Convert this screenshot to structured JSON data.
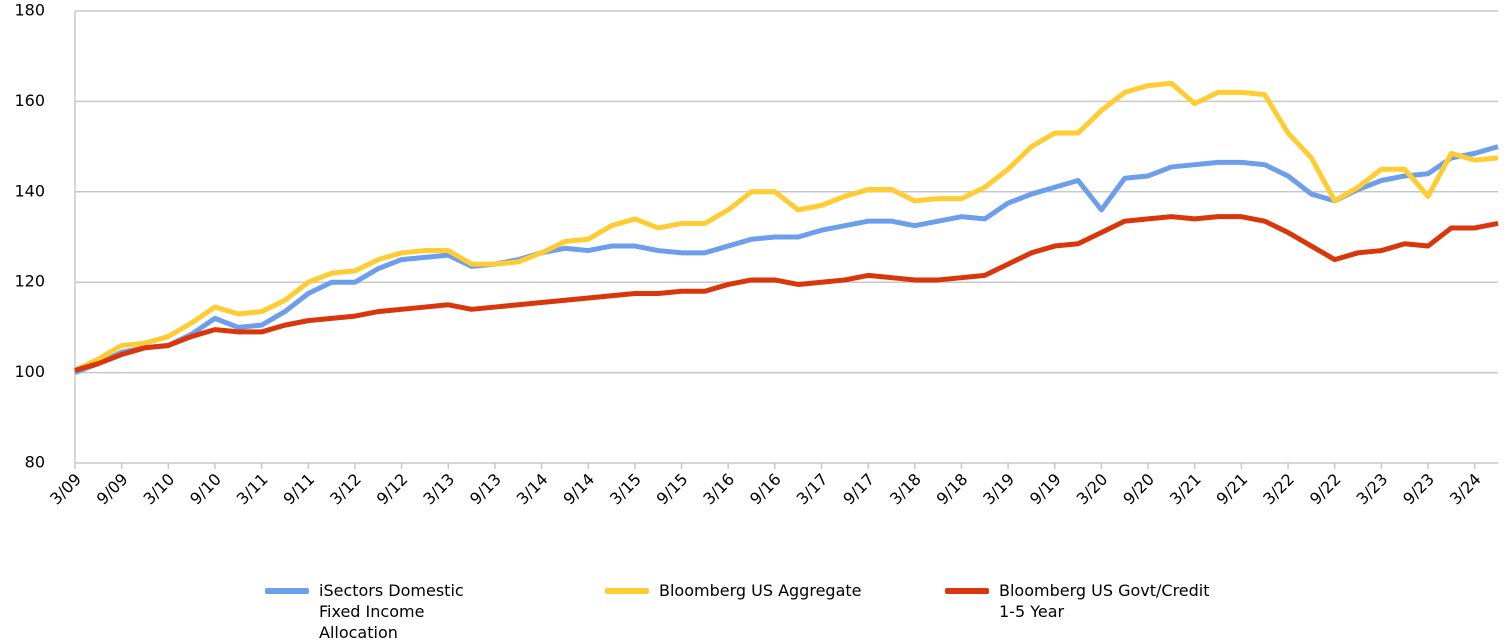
{
  "chart_data": {
    "type": "line",
    "categories": [
      "3/09",
      null,
      "9/09",
      null,
      "3/10",
      null,
      "9/10",
      null,
      "3/11",
      null,
      "9/11",
      null,
      "3/12",
      null,
      "9/12",
      null,
      "3/13",
      null,
      "9/13",
      null,
      "3/14",
      null,
      "9/14",
      null,
      "3/15",
      null,
      "9/15",
      null,
      "3/16",
      null,
      "9/16",
      null,
      "3/17",
      null,
      "9/17",
      null,
      "3/18",
      null,
      "9/18",
      null,
      "3/19",
      null,
      "9/19",
      null,
      "3/20",
      null,
      "9/20",
      null,
      "3/21",
      null,
      "9/21",
      null,
      "3/22",
      null,
      "9/22",
      null,
      "3/23",
      null,
      "9/23",
      null,
      "3/24",
      null
    ],
    "ylim": [
      80,
      180
    ],
    "yticks": [
      80,
      100,
      120,
      140,
      160,
      180
    ],
    "grid": true,
    "series": [
      {
        "name": "iSectors Domestic Fixed Income Allocation",
        "color": "#6d9eeb",
        "values": [
          100,
          102,
          104.5,
          105.5,
          106,
          108.5,
          112,
          110,
          110.5,
          113.5,
          117.5,
          120,
          120,
          123,
          125,
          125.5,
          126,
          123.5,
          124,
          125,
          126.5,
          127.5,
          127,
          128,
          128,
          127,
          126.5,
          126.5,
          128,
          129.5,
          130,
          130,
          131.5,
          132.5,
          133.5,
          133.5,
          132.5,
          133.5,
          134.5,
          134,
          137.5,
          139.5,
          141,
          142.5,
          136,
          143,
          143.5,
          145.5,
          146,
          146.5,
          146.5,
          146,
          143.5,
          139.5,
          138,
          140.5,
          142.5,
          143.5,
          144,
          147.5,
          148.5,
          150
        ]
      },
      {
        "name": "Bloomberg US Aggregate",
        "color": "#ffcc33",
        "values": [
          100.5,
          103,
          106,
          106.5,
          108,
          111,
          114.5,
          113,
          113.5,
          116,
          120,
          122,
          122.5,
          125,
          126.5,
          127,
          127,
          124,
          124,
          124.5,
          126.5,
          129,
          129.5,
          132.5,
          134,
          132,
          133,
          133,
          136,
          140,
          140,
          136,
          137,
          139,
          140.5,
          140.5,
          138,
          138.5,
          138.5,
          141,
          145,
          150,
          153,
          153,
          158,
          162,
          163.5,
          164,
          159.5,
          162,
          162,
          161.5,
          153,
          147.5,
          138,
          141,
          145,
          145,
          139,
          148.5,
          147,
          147.5
        ]
      },
      {
        "name": "Bloomberg US Govt/Credit 1-5 Year",
        "color": "#d9360b",
        "values": [
          100.5,
          102,
          104,
          105.5,
          106,
          108,
          109.5,
          109,
          109,
          110.5,
          111.5,
          112,
          112.5,
          113.5,
          114,
          114.5,
          115,
          114,
          114.5,
          115,
          115.5,
          116,
          116.5,
          117,
          117.5,
          117.5,
          118,
          118,
          119.5,
          120.5,
          120.5,
          119.5,
          120,
          120.5,
          121.5,
          121,
          120.5,
          120.5,
          121,
          121.5,
          124,
          126.5,
          128,
          128.5,
          131,
          133.5,
          134,
          134.5,
          134,
          134.5,
          134.5,
          133.5,
          131,
          128,
          125,
          126.5,
          127,
          128.5,
          128,
          132,
          132,
          133
        ]
      }
    ]
  }
}
